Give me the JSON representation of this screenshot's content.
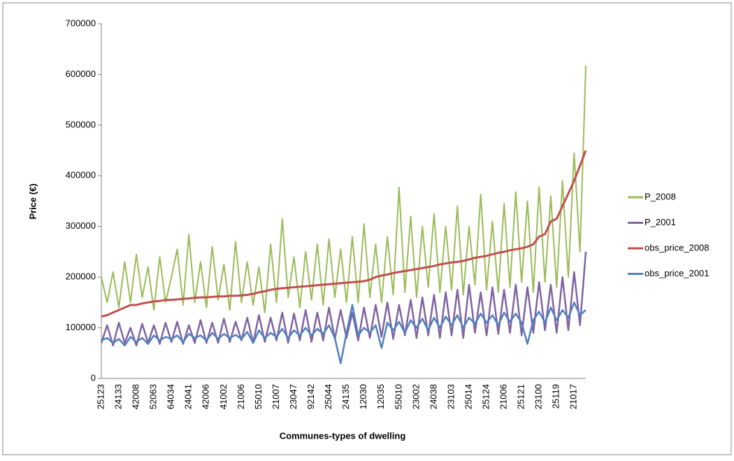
{
  "chart_data": {
    "type": "line",
    "y_label": "Price (€)",
    "x_label": "Communes-types of dwelling",
    "categories": [
      "25123",
      null,
      null,
      "24133",
      null,
      null,
      "42008",
      null,
      null,
      "52063",
      null,
      null,
      "64034",
      null,
      null,
      "24041",
      null,
      null,
      "42006",
      null,
      null,
      "41002",
      null,
      null,
      "21006",
      null,
      null,
      "55010",
      null,
      null,
      "21007",
      null,
      null,
      "23047",
      null,
      null,
      "92142",
      null,
      null,
      "25044",
      null,
      null,
      "24135",
      null,
      null,
      "12030",
      null,
      null,
      "12035",
      null,
      null,
      "55010",
      null,
      null,
      "23002",
      null,
      null,
      "24038",
      null,
      null,
      "23103",
      null,
      null,
      "25014",
      null,
      null,
      "25124",
      null,
      null,
      "21006",
      null,
      null,
      "25121",
      null,
      null,
      "23100",
      null,
      null,
      "25119",
      null,
      null,
      "21017",
      null,
      null
    ],
    "series": [
      {
        "name": "P_2008",
        "color": "#9bbb59",
        "values": [
          200000,
          150000,
          210000,
          140000,
          230000,
          150000,
          245000,
          160000,
          220000,
          135000,
          240000,
          150000,
          200000,
          255000,
          145000,
          284000,
          150000,
          230000,
          140000,
          260000,
          155000,
          225000,
          135000,
          270000,
          150000,
          230000,
          145000,
          220000,
          130000,
          265000,
          150000,
          315000,
          160000,
          240000,
          140000,
          250000,
          155000,
          265000,
          145000,
          275000,
          160000,
          255000,
          150000,
          280000,
          150000,
          305000,
          160000,
          265000,
          150000,
          280000,
          165000,
          377000,
          170000,
          320000,
          160000,
          300000,
          180000,
          325000,
          170000,
          300000,
          175000,
          340000,
          165000,
          300000,
          185000,
          363000,
          175000,
          310000,
          170000,
          345000,
          180000,
          368000,
          190000,
          350000,
          170000,
          378000,
          190000,
          360000,
          180000,
          390000,
          200000,
          445000,
          250000,
          618000
        ]
      },
      {
        "name": "P_2001",
        "color": "#8064a2",
        "values": [
          70000,
          105000,
          65000,
          110000,
          70000,
          100000,
          65000,
          108000,
          70000,
          105000,
          68000,
          110000,
          72000,
          112000,
          68000,
          105000,
          70000,
          115000,
          70000,
          110000,
          70000,
          118000,
          72000,
          112000,
          75000,
          120000,
          70000,
          125000,
          72000,
          120000,
          75000,
          130000,
          70000,
          128000,
          75000,
          135000,
          72000,
          130000,
          75000,
          140000,
          78000,
          135000,
          80000,
          130000,
          75000,
          140000,
          80000,
          145000,
          82000,
          150000,
          78000,
          145000,
          85000,
          155000,
          80000,
          160000,
          85000,
          165000,
          80000,
          170000,
          85000,
          175000,
          80000,
          185000,
          90000,
          170000,
          85000,
          180000,
          88000,
          175000,
          90000,
          185000,
          85000,
          180000,
          90000,
          190000,
          95000,
          185000,
          90000,
          200000,
          95000,
          210000,
          105000,
          250000
        ]
      },
      {
        "name": "obs_price_2008",
        "color": "#c0504d",
        "values": [
          122000,
          125000,
          130000,
          135000,
          140000,
          145000,
          145000,
          148000,
          150000,
          152000,
          153000,
          155000,
          155000,
          156000,
          157000,
          158000,
          159000,
          160000,
          160000,
          161000,
          162000,
          162000,
          163000,
          163000,
          164000,
          165000,
          167000,
          170000,
          172000,
          175000,
          177000,
          178000,
          179000,
          180000,
          181000,
          182000,
          183000,
          184000,
          185000,
          186000,
          187000,
          188000,
          189000,
          190000,
          191000,
          192000,
          195000,
          200000,
          203000,
          205000,
          208000,
          210000,
          212000,
          214000,
          216000,
          218000,
          220000,
          222000,
          225000,
          227000,
          229000,
          230000,
          232000,
          235000,
          238000,
          240000,
          242000,
          245000,
          248000,
          250000,
          253000,
          255000,
          257000,
          260000,
          265000,
          280000,
          285000,
          310000,
          315000,
          340000,
          365000,
          390000,
          420000,
          450000
        ]
      },
      {
        "name": "obs_price_2001",
        "color": "#4f81bd",
        "values": [
          75000,
          80000,
          70000,
          78000,
          65000,
          82000,
          72000,
          80000,
          68000,
          85000,
          75000,
          82000,
          78000,
          85000,
          72000,
          88000,
          80000,
          85000,
          75000,
          90000,
          78000,
          88000,
          80000,
          86000,
          78000,
          92000,
          70000,
          95000,
          80000,
          90000,
          82000,
          98000,
          80000,
          95000,
          85000,
          100000,
          85000,
          98000,
          88000,
          105000,
          80000,
          30000,
          90000,
          145000,
          85000,
          100000,
          90000,
          105000,
          60000,
          110000,
          95000,
          112000,
          90000,
          115000,
          100000,
          118000,
          95000,
          120000,
          100000,
          122000,
          105000,
          125000,
          100000,
          120000,
          108000,
          128000,
          110000,
          125000,
          105000,
          130000,
          112000,
          128000,
          110000,
          68000,
          115000,
          132000,
          110000,
          140000,
          115000,
          135000,
          120000,
          150000,
          125000,
          135000
        ]
      }
    ],
    "ylim": [
      0,
      700000
    ],
    "yticks": [
      0,
      100000,
      200000,
      300000,
      400000,
      500000,
      600000,
      700000
    ],
    "grid": false,
    "legend": "right"
  }
}
